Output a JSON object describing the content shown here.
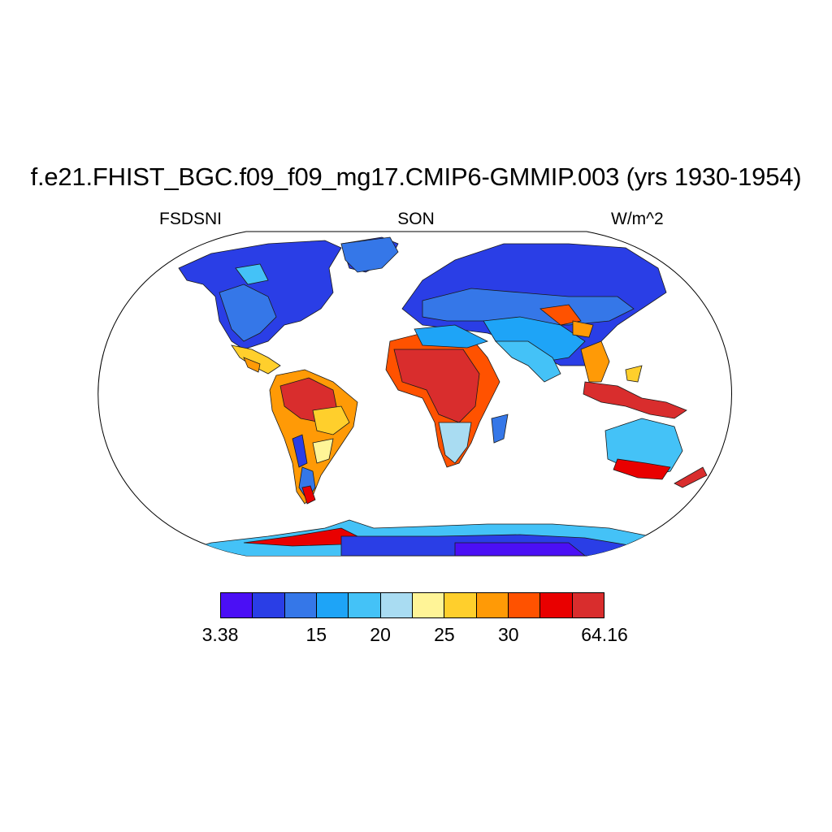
{
  "title": "f.e21.FHIST_BGC.f09_f09_mg17.CMIP6-GMMIP.003 (yrs 1930-1954)",
  "variable": "FSDSNI",
  "season": "SON",
  "units": "W/m^2",
  "colorbar": {
    "colors": [
      "#4b0ff5",
      "#2a3ee6",
      "#3577e8",
      "#1ea4f7",
      "#44c2f7",
      "#a9dcf2",
      "#fff497",
      "#ffcf2c",
      "#ff9a06",
      "#ff5200",
      "#e90000",
      "#d92d2d"
    ],
    "labels": [
      {
        "text": "3.38",
        "edge": 0
      },
      {
        "text": "15",
        "edge": 3
      },
      {
        "text": "20",
        "edge": 5
      },
      {
        "text": "25",
        "edge": 7
      },
      {
        "text": "30",
        "edge": 9
      },
      {
        "text": "64.16",
        "edge": 12
      }
    ]
  }
}
